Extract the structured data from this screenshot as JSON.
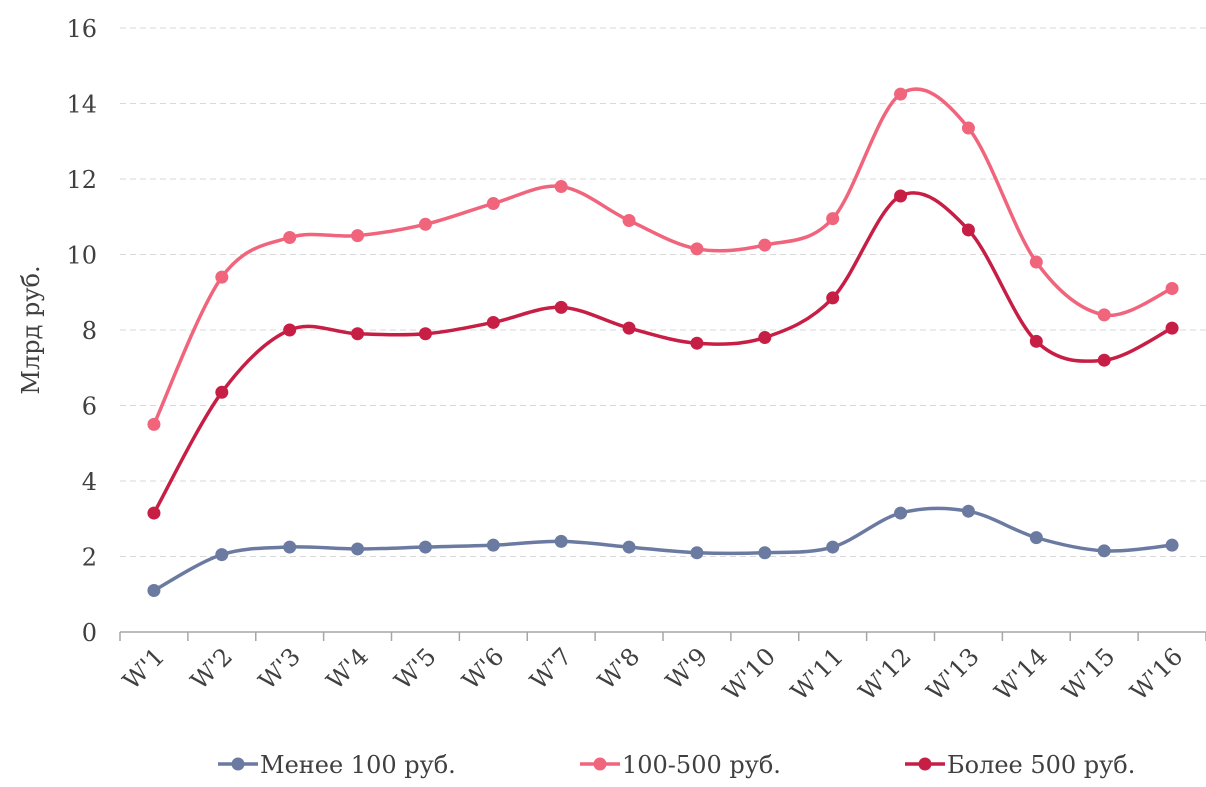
{
  "chart_data": {
    "type": "line",
    "title": "",
    "xlabel": "",
    "ylabel": "Млрд руб.",
    "ylim": [
      0,
      16
    ],
    "yticks": [
      0,
      2,
      4,
      6,
      8,
      10,
      12,
      14,
      16
    ],
    "grid": true,
    "legend_position": "bottom",
    "smooth": true,
    "categories": [
      "W'1",
      "W'2",
      "W'3",
      "W'4",
      "W'5",
      "W'6",
      "W'7",
      "W'8",
      "W'9",
      "W'10",
      "W'11",
      "W'12",
      "W'13",
      "W'14",
      "W'15",
      "W'16"
    ],
    "series": [
      {
        "name": "Менее 100 руб.",
        "color": "#6b7aa1",
        "values": [
          1.1,
          2.05,
          2.25,
          2.2,
          2.25,
          2.3,
          2.4,
          2.25,
          2.1,
          2.1,
          2.25,
          3.15,
          3.2,
          2.5,
          2.15,
          2.3
        ]
      },
      {
        "name": "100-500 руб.",
        "color": "#f0647c",
        "values": [
          5.5,
          9.4,
          10.45,
          10.5,
          10.8,
          11.35,
          11.8,
          10.9,
          10.15,
          10.25,
          10.95,
          14.25,
          13.35,
          9.8,
          8.4,
          9.1
        ]
      },
      {
        "name": "Более 500 руб.",
        "color": "#c71e45",
        "values": [
          3.15,
          6.35,
          8.0,
          7.9,
          7.9,
          8.2,
          8.6,
          8.05,
          7.65,
          7.8,
          8.85,
          11.55,
          10.65,
          7.7,
          7.2,
          8.05
        ]
      }
    ]
  }
}
